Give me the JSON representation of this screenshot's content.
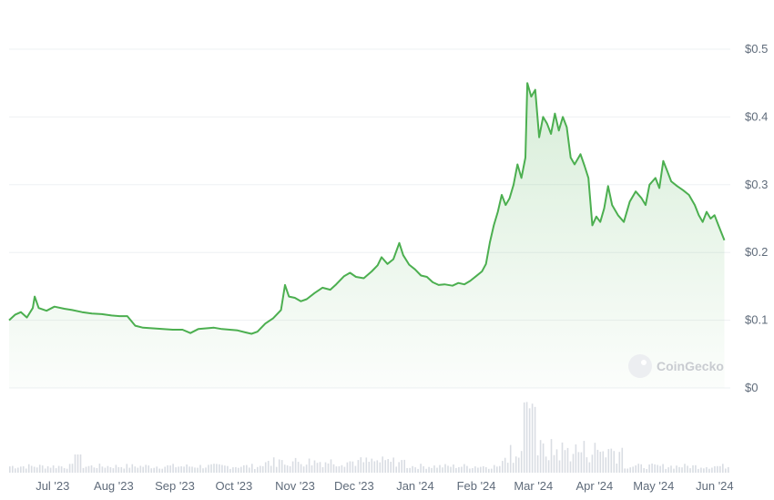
{
  "chart_data": {
    "type": "area",
    "title": "",
    "xlabel": "",
    "ylabel": "",
    "y_axis_position": "right",
    "ylim": [
      0,
      0.5
    ],
    "y_ticks": [
      {
        "value": 0.5,
        "label": "$0.5"
      },
      {
        "value": 0.4,
        "label": "$0.4"
      },
      {
        "value": 0.3,
        "label": "$0.3"
      },
      {
        "value": 0.2,
        "label": "$0.2"
      },
      {
        "value": 0.1,
        "label": "$0.1"
      },
      {
        "value": 0,
        "label": "$0"
      }
    ],
    "xlim": [
      "2023-06-20",
      "2024-06-20"
    ],
    "x_ticks": [
      {
        "date": "2023-07-01",
        "label": "Jul '23"
      },
      {
        "date": "2023-08-01",
        "label": "Aug '23"
      },
      {
        "date": "2023-09-01",
        "label": "Sep '23"
      },
      {
        "date": "2023-10-01",
        "label": "Oct '23"
      },
      {
        "date": "2023-11-01",
        "label": "Nov '23"
      },
      {
        "date": "2023-12-01",
        "label": "Dec '23"
      },
      {
        "date": "2024-01-01",
        "label": "Jan '24"
      },
      {
        "date": "2024-02-01",
        "label": "Feb '24"
      },
      {
        "date": "2024-03-01",
        "label": "Mar '24"
      },
      {
        "date": "2024-04-01",
        "label": "Apr '24"
      },
      {
        "date": "2024-05-01",
        "label": "May '24"
      },
      {
        "date": "2024-06-01",
        "label": "Jun '24"
      }
    ],
    "grid": true,
    "line_color": "#4caf50",
    "fill_color": "#4caf50",
    "volume_color": "#d9dde3",
    "watermark": "CoinGecko",
    "series": [
      {
        "points": [
          [
            "2023-06-20",
            0.1
          ],
          [
            "2023-06-23",
            0.108
          ],
          [
            "2023-06-26",
            0.112
          ],
          [
            "2023-06-29",
            0.104
          ],
          [
            "2023-07-02",
            0.118
          ],
          [
            "2023-07-03",
            0.135
          ],
          [
            "2023-07-05",
            0.118
          ],
          [
            "2023-07-09",
            0.114
          ],
          [
            "2023-07-13",
            0.12
          ],
          [
            "2023-07-18",
            0.117
          ],
          [
            "2023-07-22",
            0.115
          ],
          [
            "2023-07-27",
            0.112
          ],
          [
            "2023-08-01",
            0.11
          ],
          [
            "2023-08-06",
            0.109
          ],
          [
            "2023-08-11",
            0.107
          ],
          [
            "2023-08-15",
            0.106
          ],
          [
            "2023-08-19",
            0.106
          ],
          [
            "2023-08-23",
            0.092
          ],
          [
            "2023-08-27",
            0.089
          ],
          [
            "2023-09-01",
            0.088
          ],
          [
            "2023-09-06",
            0.087
          ],
          [
            "2023-09-11",
            0.086
          ],
          [
            "2023-09-16",
            0.086
          ],
          [
            "2023-09-20",
            0.081
          ],
          [
            "2023-09-24",
            0.087
          ],
          [
            "2023-09-28",
            0.088
          ],
          [
            "2023-10-02",
            0.089
          ],
          [
            "2023-10-06",
            0.087
          ],
          [
            "2023-10-10",
            0.086
          ],
          [
            "2023-10-14",
            0.085
          ],
          [
            "2023-10-18",
            0.082
          ],
          [
            "2023-10-21",
            0.08
          ],
          [
            "2023-10-24",
            0.083
          ],
          [
            "2023-10-28",
            0.095
          ],
          [
            "2023-11-01",
            0.103
          ],
          [
            "2023-11-05",
            0.115
          ],
          [
            "2023-11-07",
            0.152
          ],
          [
            "2023-11-09",
            0.135
          ],
          [
            "2023-11-12",
            0.133
          ],
          [
            "2023-11-15",
            0.128
          ],
          [
            "2023-11-18",
            0.131
          ],
          [
            "2023-11-22",
            0.14
          ],
          [
            "2023-11-26",
            0.148
          ],
          [
            "2023-11-30",
            0.145
          ],
          [
            "2023-12-03",
            0.153
          ],
          [
            "2023-12-07",
            0.165
          ],
          [
            "2023-12-10",
            0.17
          ],
          [
            "2023-12-13",
            0.164
          ],
          [
            "2023-12-17",
            0.162
          ],
          [
            "2023-12-21",
            0.172
          ],
          [
            "2023-12-24",
            0.181
          ],
          [
            "2023-12-26",
            0.193
          ],
          [
            "2023-12-29",
            0.183
          ],
          [
            "2024-01-01",
            0.19
          ],
          [
            "2024-01-04",
            0.214
          ],
          [
            "2024-01-06",
            0.196
          ],
          [
            "2024-01-09",
            0.182
          ],
          [
            "2024-01-12",
            0.175
          ],
          [
            "2024-01-15",
            0.166
          ],
          [
            "2024-01-18",
            0.164
          ],
          [
            "2024-01-21",
            0.156
          ],
          [
            "2024-01-24",
            0.152
          ],
          [
            "2024-01-27",
            0.153
          ],
          [
            "2024-01-31",
            0.151
          ],
          [
            "2024-02-03",
            0.155
          ],
          [
            "2024-02-06",
            0.153
          ],
          [
            "2024-02-09",
            0.158
          ],
          [
            "2024-02-12",
            0.165
          ],
          [
            "2024-02-15",
            0.172
          ],
          [
            "2024-02-17",
            0.183
          ],
          [
            "2024-02-19",
            0.215
          ],
          [
            "2024-02-21",
            0.24
          ],
          [
            "2024-02-23",
            0.26
          ],
          [
            "2024-02-25",
            0.285
          ],
          [
            "2024-02-27",
            0.27
          ],
          [
            "2024-02-29",
            0.28
          ],
          [
            "2024-03-02",
            0.3
          ],
          [
            "2024-03-04",
            0.33
          ],
          [
            "2024-03-06",
            0.31
          ],
          [
            "2024-03-08",
            0.34
          ],
          [
            "2024-03-09",
            0.45
          ],
          [
            "2024-03-11",
            0.43
          ],
          [
            "2024-03-13",
            0.44
          ],
          [
            "2024-03-15",
            0.37
          ],
          [
            "2024-03-17",
            0.4
          ],
          [
            "2024-03-19",
            0.39
          ],
          [
            "2024-03-21",
            0.375
          ],
          [
            "2024-03-23",
            0.405
          ],
          [
            "2024-03-25",
            0.38
          ],
          [
            "2024-03-27",
            0.4
          ],
          [
            "2024-03-29",
            0.385
          ],
          [
            "2024-03-31",
            0.34
          ],
          [
            "2024-04-02",
            0.33
          ],
          [
            "2024-04-05",
            0.345
          ],
          [
            "2024-04-07",
            0.328
          ],
          [
            "2024-04-09",
            0.31
          ],
          [
            "2024-04-11",
            0.24
          ],
          [
            "2024-04-13",
            0.253
          ],
          [
            "2024-04-15",
            0.245
          ],
          [
            "2024-04-17",
            0.265
          ],
          [
            "2024-04-19",
            0.298
          ],
          [
            "2024-04-21",
            0.27
          ],
          [
            "2024-04-24",
            0.255
          ],
          [
            "2024-04-27",
            0.245
          ],
          [
            "2024-04-30",
            0.275
          ],
          [
            "2024-05-03",
            0.29
          ],
          [
            "2024-05-06",
            0.28
          ],
          [
            "2024-05-08",
            0.27
          ],
          [
            "2024-05-10",
            0.3
          ],
          [
            "2024-05-13",
            0.31
          ],
          [
            "2024-05-15",
            0.295
          ],
          [
            "2024-05-17",
            0.335
          ],
          [
            "2024-05-19",
            0.32
          ],
          [
            "2024-05-21",
            0.305
          ],
          [
            "2024-05-24",
            0.298
          ],
          [
            "2024-05-27",
            0.292
          ],
          [
            "2024-05-30",
            0.285
          ],
          [
            "2024-06-02",
            0.27
          ],
          [
            "2024-06-04",
            0.255
          ],
          [
            "2024-06-06",
            0.245
          ],
          [
            "2024-06-08",
            0.26
          ],
          [
            "2024-06-10",
            0.25
          ],
          [
            "2024-06-12",
            0.255
          ],
          [
            "2024-06-14",
            0.24
          ],
          [
            "2024-06-17",
            0.218
          ]
        ]
      }
    ]
  }
}
